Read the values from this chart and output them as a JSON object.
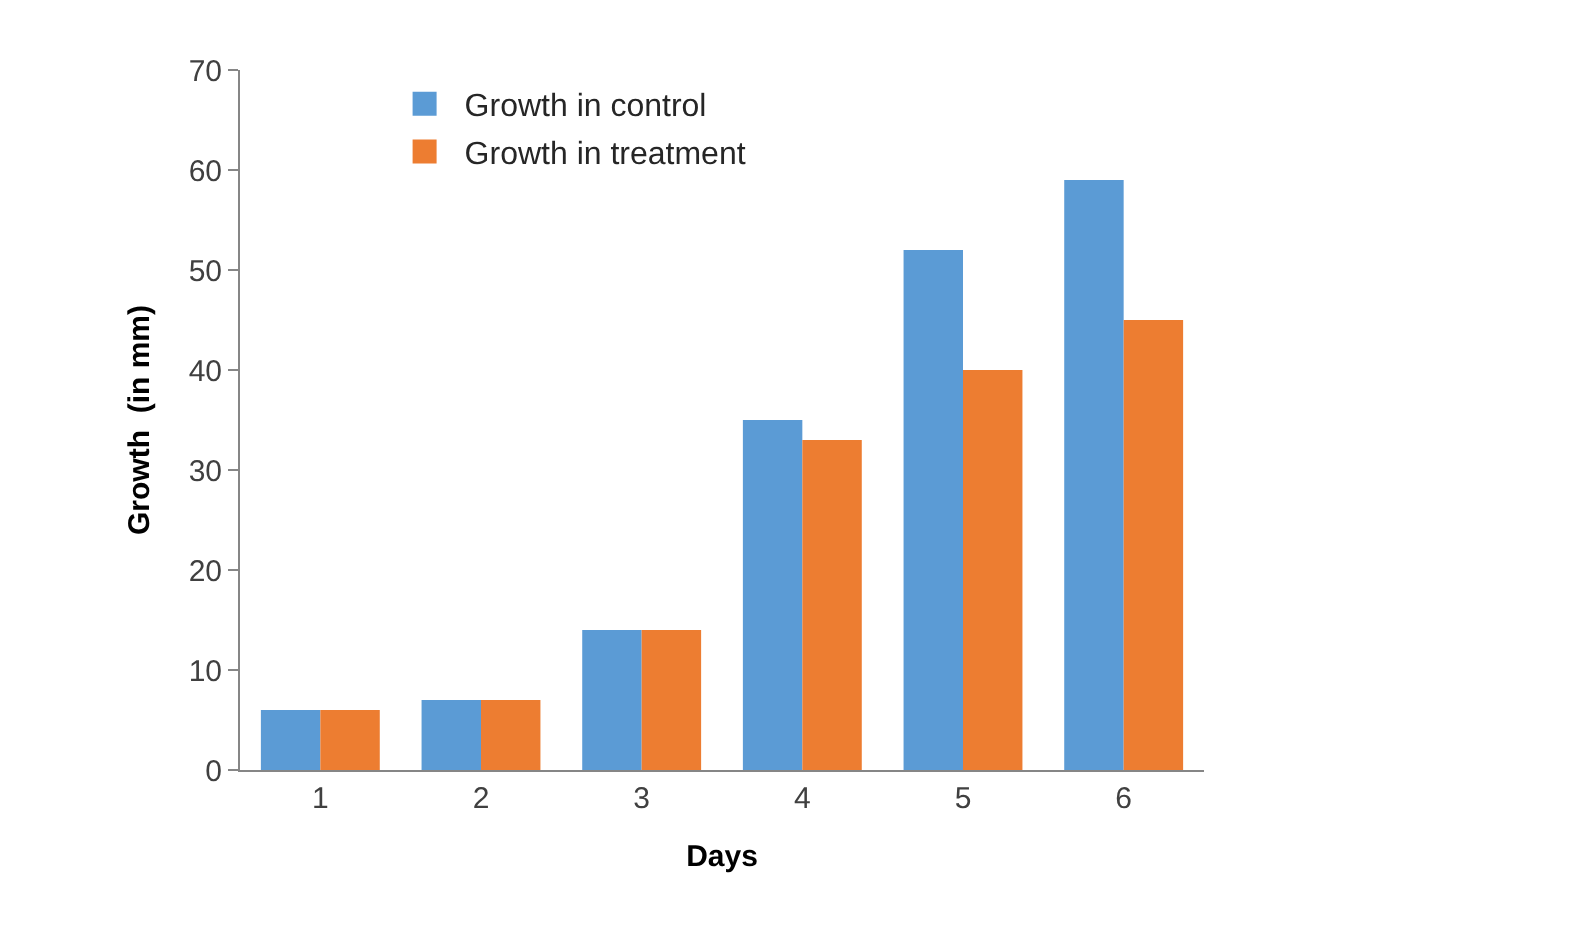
{
  "chart_data": {
    "type": "bar",
    "xlabel": "Days",
    "ylabel": "Growth  (in mm)",
    "categories": [
      "1",
      "2",
      "3",
      "4",
      "5",
      "6"
    ],
    "series": [
      {
        "name": "Growth in control",
        "color": "#5b9bd5",
        "values": [
          6,
          7,
          14,
          35,
          52,
          59
        ]
      },
      {
        "name": "Growth in treatment",
        "color": "#ed7d31",
        "values": [
          6,
          7,
          14,
          33,
          40,
          45
        ]
      }
    ],
    "ylim": [
      0,
      70
    ],
    "yticks": [
      0,
      10,
      20,
      30,
      40,
      50,
      60,
      70
    ],
    "legend": "top left"
  }
}
